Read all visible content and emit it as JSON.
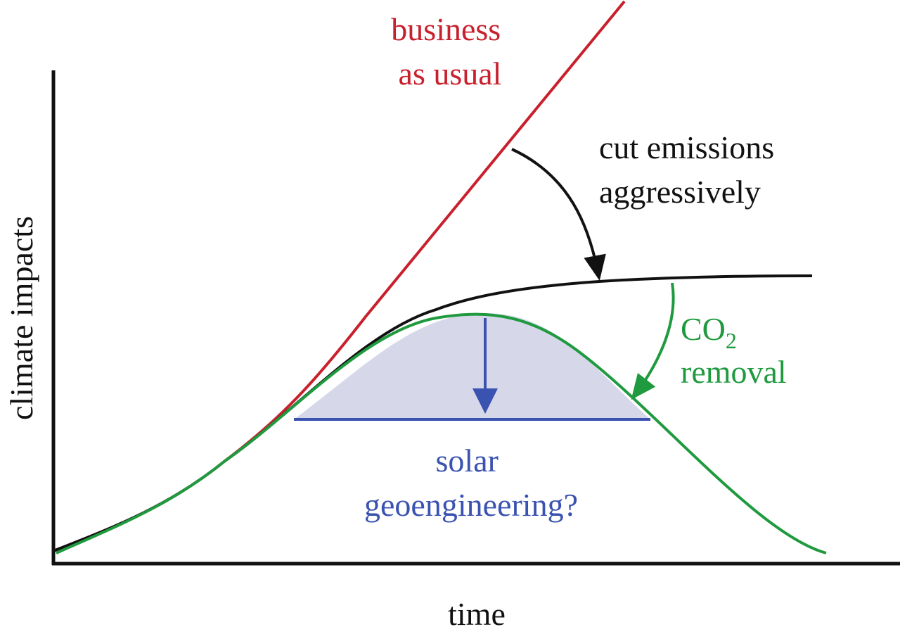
{
  "axes": {
    "x_label": "time",
    "y_label": "climate impacts"
  },
  "colors": {
    "business_as_usual": "#c8202c",
    "cut_emissions": "#111111",
    "co2_removal": "#1f9a3e",
    "solar_geoengineering": "#3a52b0",
    "solar_fill": "#d7d7ea",
    "axis": "#111111"
  },
  "curves": {
    "business_as_usual": {
      "label_line1": "business",
      "label_line2": "as usual"
    },
    "cut_emissions": {
      "label_line1": "cut emissions",
      "label_line2": "aggressively"
    },
    "co2_removal": {
      "label_co": "CO",
      "label_sub": "2",
      "label_line2": "removal"
    },
    "solar_geoengineering": {
      "label_line1": "solar",
      "label_line2": "geoengineering?"
    }
  }
}
